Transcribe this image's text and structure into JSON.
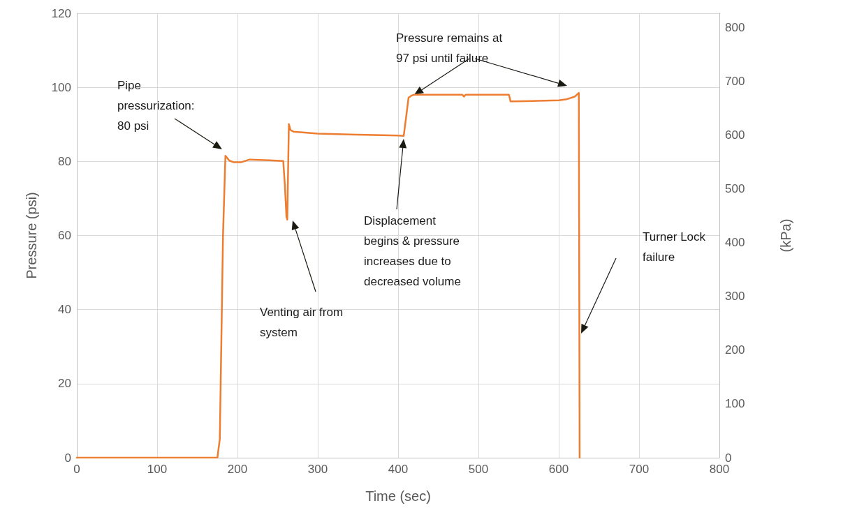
{
  "chart_data": {
    "type": "line",
    "xlabel": "Time (sec)",
    "ylabel": "Pressure (psi)",
    "y2label": "(kPa)",
    "xlim": [
      0,
      800
    ],
    "xticks": [
      0,
      100,
      200,
      300,
      400,
      500,
      600,
      700,
      800
    ],
    "ylim": [
      0,
      120
    ],
    "yticks": [
      0,
      20,
      40,
      60,
      80,
      100,
      120
    ],
    "y2lim": [
      0,
      827
    ],
    "y2ticks": [
      0,
      100,
      200,
      300,
      400,
      500,
      600,
      700,
      800
    ],
    "grid": true,
    "marker": "none",
    "line_style": "solid",
    "series": [
      {
        "color": "#ed7d31",
        "x": [
          0,
          100,
          175,
          178,
          182,
          185,
          190,
          195,
          205,
          215,
          240,
          257,
          259,
          261,
          262,
          264,
          266,
          270,
          300,
          350,
          400,
          407,
          410,
          413,
          417,
          420,
          480,
          482,
          484,
          538,
          540,
          545,
          600,
          610,
          620,
          625,
          626
        ],
        "values": [
          0,
          0,
          0,
          5,
          60,
          81.5,
          80.2,
          79.8,
          79.8,
          80.5,
          80.3,
          80.1,
          73.6,
          65,
          64.3,
          90.1,
          88.5,
          88,
          87.5,
          87.2,
          87,
          86.9,
          92,
          97.2,
          97.8,
          98,
          98,
          97.5,
          98,
          98,
          96.2,
          96.2,
          96.5,
          96.8,
          97.5,
          98.5,
          0
        ]
      }
    ],
    "annotations": [
      "Pipe\npressurization:\n80 psi",
      "Venting air from\nsystem",
      "Displacement\nbegins & pressure\nincreases due to\ndecreased volume",
      {
        "text": "Pressure remains at\n97 psi until failure",
        "x": 420,
        "y": 98
      },
      "Turner Lock\nfailure"
    ]
  }
}
